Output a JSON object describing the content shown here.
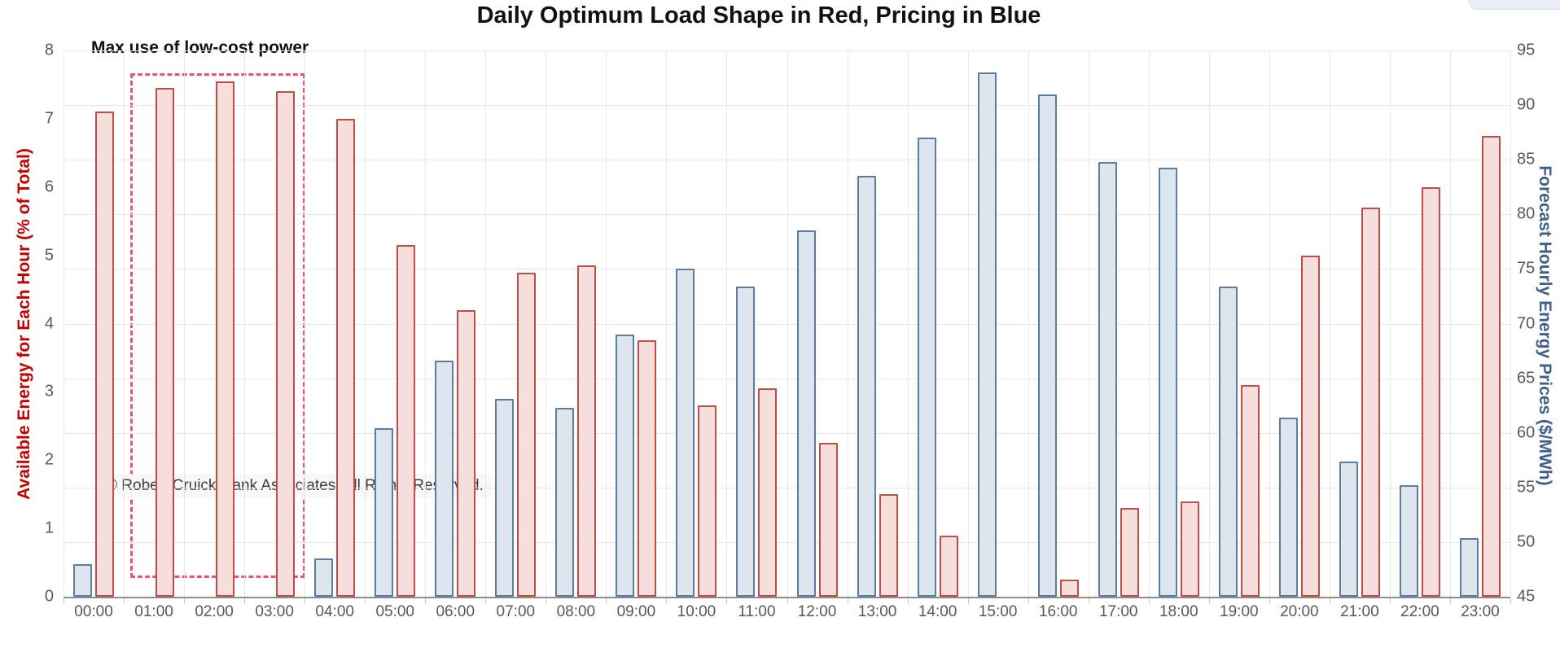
{
  "title": "Daily Optimum Load Shape in Red, Pricing in Blue",
  "axes": {
    "left": {
      "title": "Available Energy for Each Hour (% of Total)",
      "color": "#c00000",
      "ticks": [
        "8",
        "7",
        "6",
        "5",
        "4",
        "3",
        "2",
        "1",
        "0"
      ],
      "range": [
        0,
        8
      ]
    },
    "right": {
      "title": "Forecast Hourly Energy Prices ($/MWh)",
      "color": "#415f88",
      "ticks": [
        "95",
        "90",
        "85",
        "80",
        "75",
        "70",
        "65",
        "60",
        "55",
        "50",
        "45"
      ],
      "range": [
        45,
        95
      ]
    }
  },
  "annotation": {
    "label": "Max use of low-cost power",
    "box_from_hour": "01:00",
    "box_to_hour": "03:00",
    "box_color": "#ea5379"
  },
  "copyright": "© Robert Cruickshank Associates. All Rights Reserved.",
  "chart_data": {
    "type": "bar",
    "categories": [
      "00:00",
      "01:00",
      "02:00",
      "03:00",
      "04:00",
      "05:00",
      "06:00",
      "07:00",
      "08:00",
      "09:00",
      "10:00",
      "11:00",
      "12:00",
      "13:00",
      "14:00",
      "15:00",
      "16:00",
      "17:00",
      "18:00",
      "19:00",
      "20:00",
      "21:00",
      "22:00",
      "23:00"
    ],
    "series": [
      {
        "name": "Forecast Hourly Energy Prices ($/MWh)",
        "axis": "right",
        "border_color": "#5e7d9c",
        "fill_color": "#dde5ef",
        "values": [
          48,
          45,
          45,
          45,
          48.5,
          60.4,
          66.6,
          63.1,
          62.3,
          69,
          75,
          73.4,
          78.5,
          83.5,
          87,
          93,
          91,
          84.8,
          84.3,
          73.4,
          61.4,
          57.4,
          55.2,
          50.4
        ]
      },
      {
        "name": "Available Energy for Each Hour (% of Total)",
        "axis": "left",
        "border_color": "#bf4e49",
        "fill_color": "#f6dedd",
        "values": [
          7.1,
          7.45,
          7.55,
          7.4,
          7.0,
          5.15,
          4.2,
          4.75,
          4.85,
          3.75,
          2.8,
          3.05,
          2.25,
          1.5,
          0.9,
          0,
          0.25,
          1.3,
          1.4,
          3.1,
          5.0,
          5.7,
          6.0,
          6.75
        ]
      }
    ],
    "left_ylim": [
      0,
      8
    ],
    "right_ylim": [
      45,
      95
    ],
    "grid": {
      "horizontal_step_right_axis": 5,
      "vertical": "one line per hour boundary"
    },
    "legend": "none"
  }
}
